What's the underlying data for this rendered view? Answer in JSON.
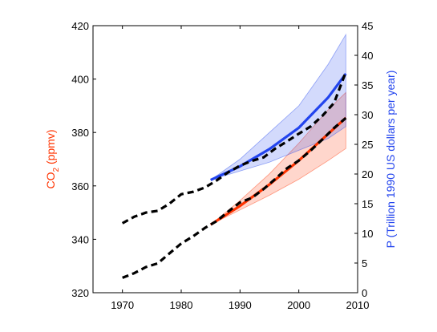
{
  "chart_data": {
    "type": "line",
    "xlim": [
      1965,
      2010
    ],
    "x_ticks": [
      1970,
      1980,
      1990,
      2000,
      2010
    ],
    "left_axis": {
      "label_main": "CO",
      "label_sub": "2",
      "label_rest": " (ppmv)",
      "color": "#ff3300",
      "ylim": [
        320,
        420
      ],
      "ticks": [
        320,
        340,
        360,
        380,
        400,
        420
      ]
    },
    "right_axis": {
      "label": "P (Trillion 1990 US dollars per year)",
      "color": "#2244ee",
      "ylim": [
        0,
        45
      ],
      "ticks": [
        0,
        5,
        10,
        15,
        20,
        25,
        30,
        35,
        40,
        45
      ]
    },
    "series": [
      {
        "axis": "left",
        "style": "observed-dashed",
        "color": "#000000",
        "x": [
          1970,
          1972,
          1974,
          1976,
          1978,
          1980,
          1982,
          1984,
          1986,
          1988,
          1990,
          1992,
          1994,
          1996,
          1998,
          2000,
          2002,
          2004,
          2006,
          2008
        ],
        "y": [
          325.6,
          327.3,
          329.6,
          331.0,
          334.7,
          338.4,
          341.1,
          344.2,
          346.8,
          350.4,
          353.8,
          355.5,
          358.8,
          362.6,
          366.6,
          369.5,
          373.2,
          377.4,
          381.7,
          385.4
        ]
      },
      {
        "axis": "left",
        "style": "model-band",
        "color": "#ff3300",
        "x": [
          1985,
          1990,
          1995,
          2000,
          2005,
          2008
        ],
        "y": [
          345.5,
          352.5,
          360.5,
          369.5,
          379.5,
          385.5
        ],
        "lower": [
          345.5,
          351.0,
          356.5,
          362.5,
          369.5,
          374.0
        ],
        "upper": [
          345.5,
          354.5,
          364.5,
          376.0,
          388.5,
          395.0
        ]
      },
      {
        "axis": "right",
        "style": "observed-dashed",
        "color": "#000000",
        "x": [
          1970,
          1972,
          1974,
          1976,
          1978,
          1980,
          1982,
          1984,
          1986,
          1988,
          1990,
          1992,
          1994,
          1996,
          1998,
          2000,
          2002,
          2004,
          2006,
          2008
        ],
        "y": [
          11.7,
          12.8,
          13.5,
          13.8,
          15.0,
          16.6,
          17.0,
          17.7,
          18.9,
          20.3,
          21.4,
          22.2,
          22.8,
          24.3,
          25.5,
          26.8,
          28.0,
          29.8,
          32.0,
          37.2
        ]
      },
      {
        "axis": "right",
        "style": "model-band",
        "color": "#2244ee",
        "x": [
          1985,
          1990,
          1995,
          2000,
          2005,
          2008
        ],
        "y": [
          19.0,
          21.3,
          24.2,
          27.8,
          32.9,
          36.9
        ],
        "lower": [
          19.0,
          20.5,
          22.0,
          24.0,
          26.0,
          28.0
        ],
        "upper": [
          19.0,
          22.5,
          27.0,
          31.5,
          38.5,
          43.5
        ]
      }
    ]
  }
}
